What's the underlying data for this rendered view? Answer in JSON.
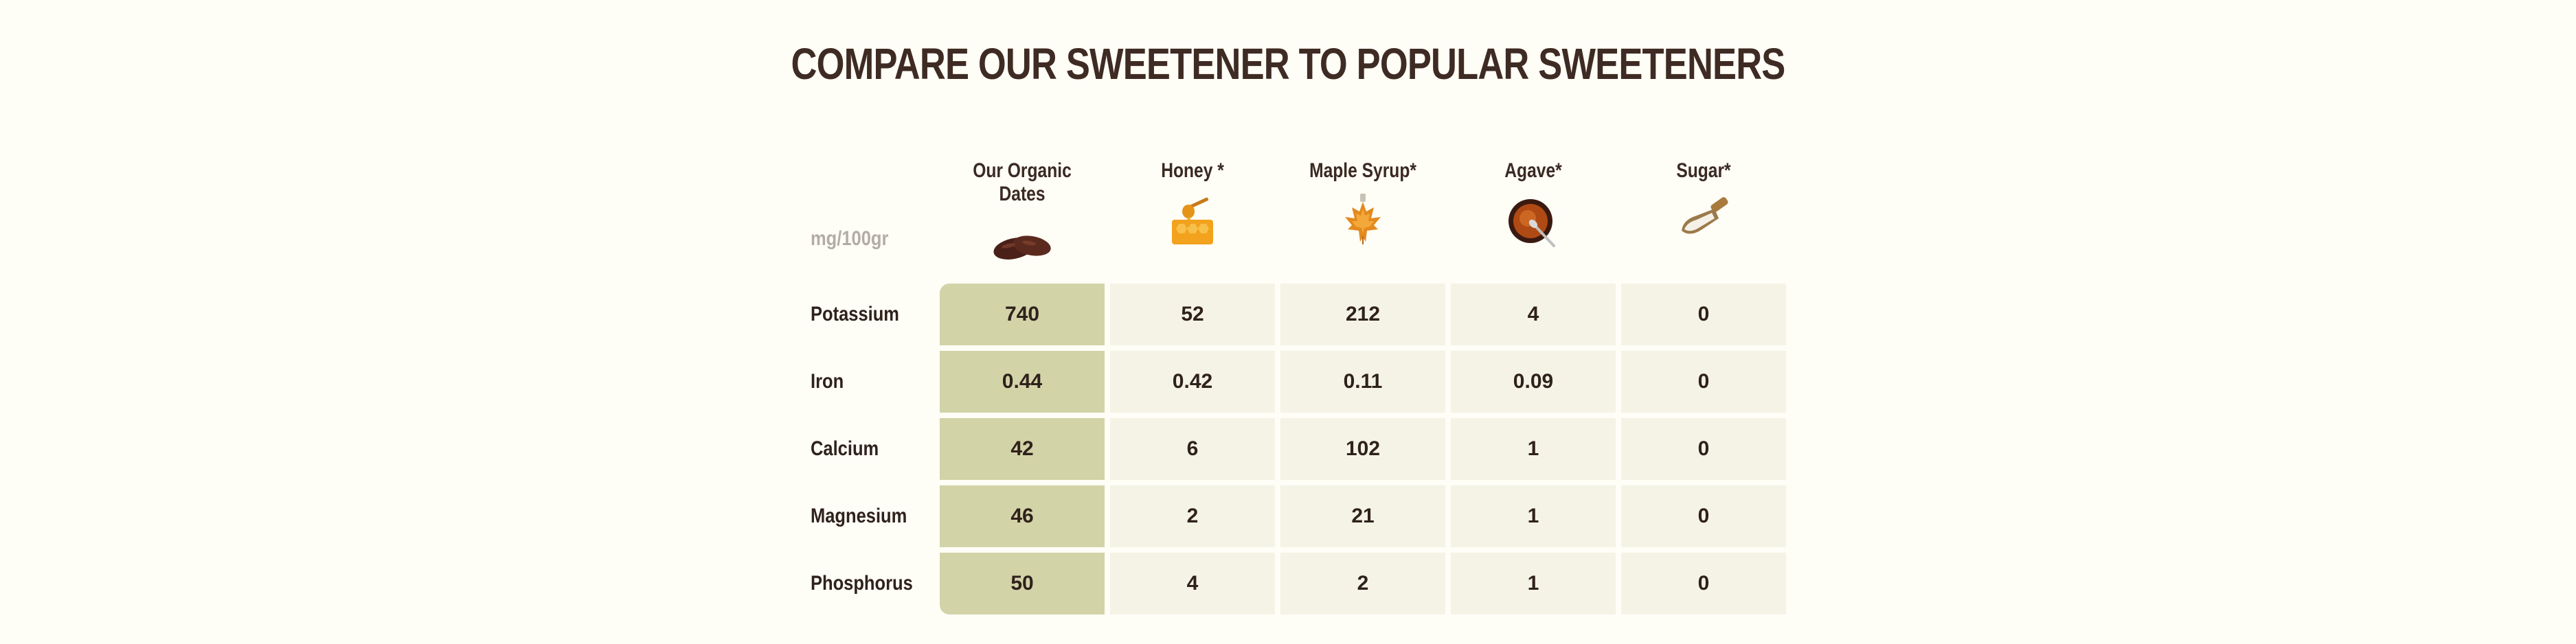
{
  "title": "COMPARE OUR SWEETENER TO POPULAR SWEETENERS",
  "unit_label": "mg/100gr",
  "columns": [
    {
      "name": "Our Organic Dates",
      "icon": "dates-icon"
    },
    {
      "name": "Honey *",
      "icon": "honeycomb-icon"
    },
    {
      "name": "Maple Syrup*",
      "icon": "maple-leaf-icon"
    },
    {
      "name": "Agave*",
      "icon": "agave-syrup-bowl-icon"
    },
    {
      "name": "Sugar*",
      "icon": "sugar-scoop-icon"
    }
  ],
  "rows": [
    {
      "label": "Potassium",
      "values": [
        "740",
        "52",
        "212",
        "4",
        "0"
      ]
    },
    {
      "label": "Iron",
      "values": [
        "0.44",
        "0.42",
        "0.11",
        "0.09",
        "0"
      ]
    },
    {
      "label": "Calcium",
      "values": [
        "42",
        "6",
        "102",
        "1",
        "0"
      ]
    },
    {
      "label": "Magnesium",
      "values": [
        "46",
        "2",
        "21",
        "1",
        "0"
      ]
    },
    {
      "label": "Phosphorus",
      "values": [
        "50",
        "4",
        "2",
        "1",
        "0"
      ]
    }
  ],
  "colors": {
    "background": "#fefdf6",
    "highlight_column": "#d3d3a8",
    "cell": "#f4f3e6",
    "text": "#3a2a22",
    "unit_text": "#b3ada4"
  }
}
